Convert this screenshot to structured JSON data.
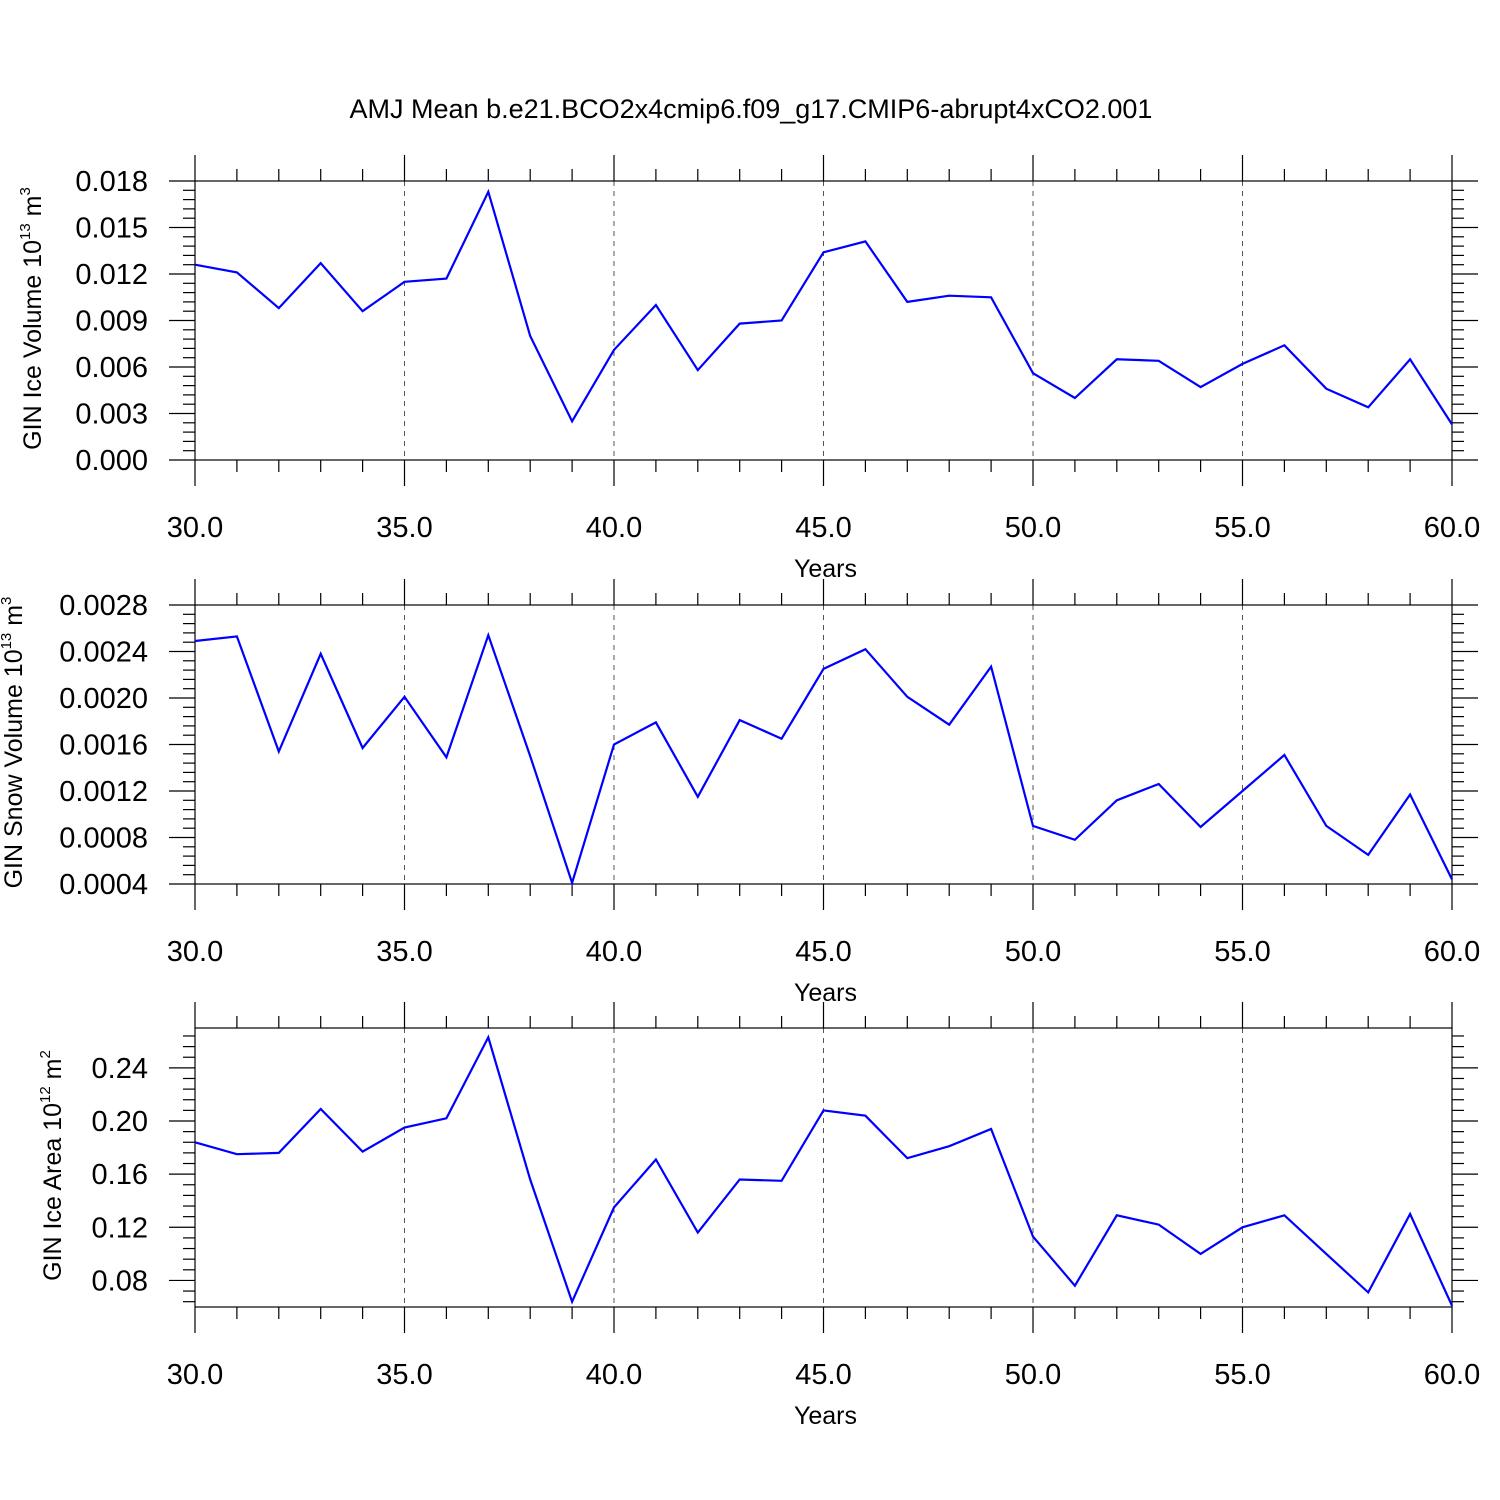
{
  "title": "AMJ Mean b.e21.BCO2x4cmip6.f09_g17.CMIP6-abrupt4xCO2.001",
  "colors": {
    "series": "#0000ff",
    "axes": "#000000",
    "grid": "#555555"
  },
  "chart_data": [
    {
      "type": "line",
      "xlabel": "Years",
      "ylabel": {
        "prefix": "GIN Ice Volume 10",
        "exp": "13",
        "unit": " m",
        "unit_exp": "3"
      },
      "xlim": [
        30,
        60
      ],
      "ylim": [
        0,
        0.018
      ],
      "xticks": [
        30,
        35,
        40,
        45,
        50,
        55,
        60
      ],
      "xtick_labels": [
        "30.0",
        "35.0",
        "40.0",
        "45.0",
        "50.0",
        "55.0",
        "60.0"
      ],
      "yticks": [
        0,
        0.003,
        0.006,
        0.009,
        0.012,
        0.015,
        0.018
      ],
      "ytick_labels": [
        "0.000",
        "0.003",
        "0.006",
        "0.009",
        "0.012",
        "0.015",
        "0.018"
      ],
      "grid": "vertical dashed at major x ticks",
      "x": [
        30,
        31,
        32,
        33,
        34,
        35,
        36,
        37,
        38,
        39,
        40,
        41,
        42,
        43,
        44,
        45,
        46,
        47,
        48,
        49,
        50,
        51,
        52,
        53,
        54,
        55,
        56,
        57,
        58,
        59,
        60
      ],
      "y": [
        0.0126,
        0.0121,
        0.0098,
        0.0127,
        0.0096,
        0.0115,
        0.0117,
        0.0173,
        0.008,
        0.0025,
        0.0071,
        0.01,
        0.0058,
        0.0088,
        0.009,
        0.0134,
        0.0141,
        0.0102,
        0.0106,
        0.0105,
        0.0056,
        0.004,
        0.0065,
        0.0064,
        0.0047,
        0.0062,
        0.0074,
        0.0046,
        0.0034,
        0.0065,
        0.0023
      ]
    },
    {
      "type": "line",
      "xlabel": "Years",
      "ylabel": {
        "prefix": "GIN Snow Volume 10",
        "exp": "13",
        "unit": " m",
        "unit_exp": "3"
      },
      "xlim": [
        30,
        60
      ],
      "ylim": [
        0.0004,
        0.0028
      ],
      "xticks": [
        30,
        35,
        40,
        45,
        50,
        55,
        60
      ],
      "xtick_labels": [
        "30.0",
        "35.0",
        "40.0",
        "45.0",
        "50.0",
        "55.0",
        "60.0"
      ],
      "yticks": [
        0.0004,
        0.0008,
        0.0012,
        0.0016,
        0.002,
        0.0024,
        0.0028
      ],
      "ytick_labels": [
        "0.0004",
        "0.0008",
        "0.0012",
        "0.0016",
        "0.0020",
        "0.0024",
        "0.0028"
      ],
      "grid": "vertical dashed at major x ticks",
      "x": [
        30,
        31,
        32,
        33,
        34,
        35,
        36,
        37,
        38,
        39,
        40,
        41,
        42,
        43,
        44,
        45,
        46,
        47,
        48,
        49,
        50,
        51,
        52,
        53,
        54,
        55,
        56,
        57,
        58,
        59,
        60
      ],
      "y": [
        0.00249,
        0.00253,
        0.00154,
        0.00238,
        0.00157,
        0.00201,
        0.00149,
        0.00254,
        0.0015,
        0.00041,
        0.0016,
        0.00179,
        0.00115,
        0.00181,
        0.00165,
        0.00225,
        0.00242,
        0.00201,
        0.00177,
        0.00227,
        0.0009,
        0.00078,
        0.00112,
        0.00126,
        0.00089,
        0.0012,
        0.00151,
        0.0009,
        0.00065,
        0.00117,
        0.00044
      ]
    },
    {
      "type": "line",
      "xlabel": "Years",
      "ylabel": {
        "prefix": "GIN Ice Area 10",
        "exp": "12",
        "unit": " m",
        "unit_exp": "2"
      },
      "xlim": [
        30,
        60
      ],
      "ylim": [
        0.06,
        0.27
      ],
      "xticks": [
        30,
        35,
        40,
        45,
        50,
        55,
        60
      ],
      "xtick_labels": [
        "30.0",
        "35.0",
        "40.0",
        "45.0",
        "50.0",
        "55.0",
        "60.0"
      ],
      "yticks": [
        0.08,
        0.12,
        0.16,
        0.2,
        0.24
      ],
      "ytick_labels": [
        "0.08",
        "0.12",
        "0.16",
        "0.20",
        "0.24"
      ],
      "grid": "vertical dashed at major x ticks",
      "x": [
        30,
        31,
        32,
        33,
        34,
        35,
        36,
        37,
        38,
        39,
        40,
        41,
        42,
        43,
        44,
        45,
        46,
        47,
        48,
        49,
        50,
        51,
        52,
        53,
        54,
        55,
        56,
        57,
        58,
        59,
        60
      ],
      "y": [
        0.184,
        0.175,
        0.176,
        0.209,
        0.177,
        0.195,
        0.202,
        0.263,
        0.156,
        0.064,
        0.135,
        0.171,
        0.116,
        0.156,
        0.155,
        0.208,
        0.204,
        0.172,
        0.181,
        0.194,
        0.113,
        0.076,
        0.129,
        0.122,
        0.1,
        0.12,
        0.129,
        0.1,
        0.071,
        0.13,
        0.061
      ]
    }
  ]
}
